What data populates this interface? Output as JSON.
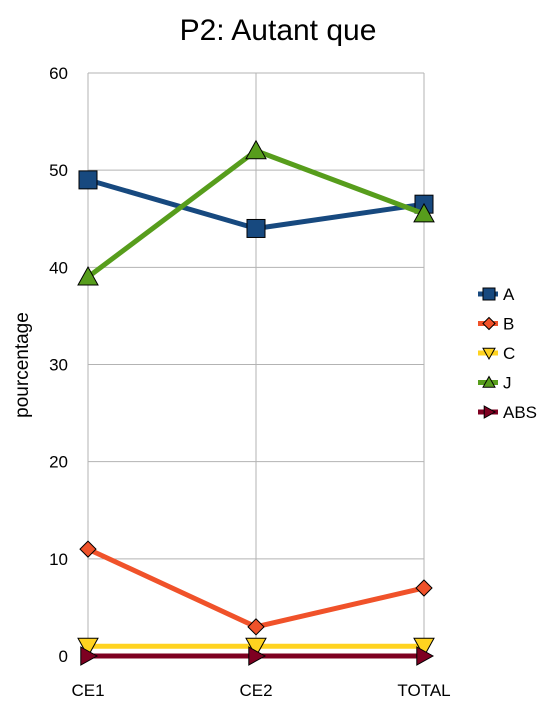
{
  "chart_data": {
    "type": "line",
    "title": "P2: Autant que",
    "xlabel": "",
    "ylabel": "pourcentage",
    "categories": [
      "CE1",
      "CE2",
      "TOTAL"
    ],
    "ylim": [
      0,
      60
    ],
    "yticks": [
      0,
      10,
      20,
      30,
      40,
      50,
      60
    ],
    "grid": true,
    "legend_position": "right",
    "series": [
      {
        "name": "A",
        "values": [
          49,
          44,
          46.5
        ],
        "color": "#17497f",
        "marker": "square"
      },
      {
        "name": "B",
        "values": [
          11,
          3,
          7
        ],
        "color": "#f0522a",
        "marker": "diamond"
      },
      {
        "name": "C",
        "values": [
          1,
          1,
          1
        ],
        "color": "#ffd320",
        "marker": "triangle-down"
      },
      {
        "name": "J",
        "values": [
          39,
          52,
          45.5
        ],
        "color": "#579d1c",
        "marker": "triangle-up"
      },
      {
        "name": "ABS",
        "values": [
          0,
          0,
          0
        ],
        "color": "#7e0021",
        "marker": "triangle-right"
      }
    ]
  }
}
